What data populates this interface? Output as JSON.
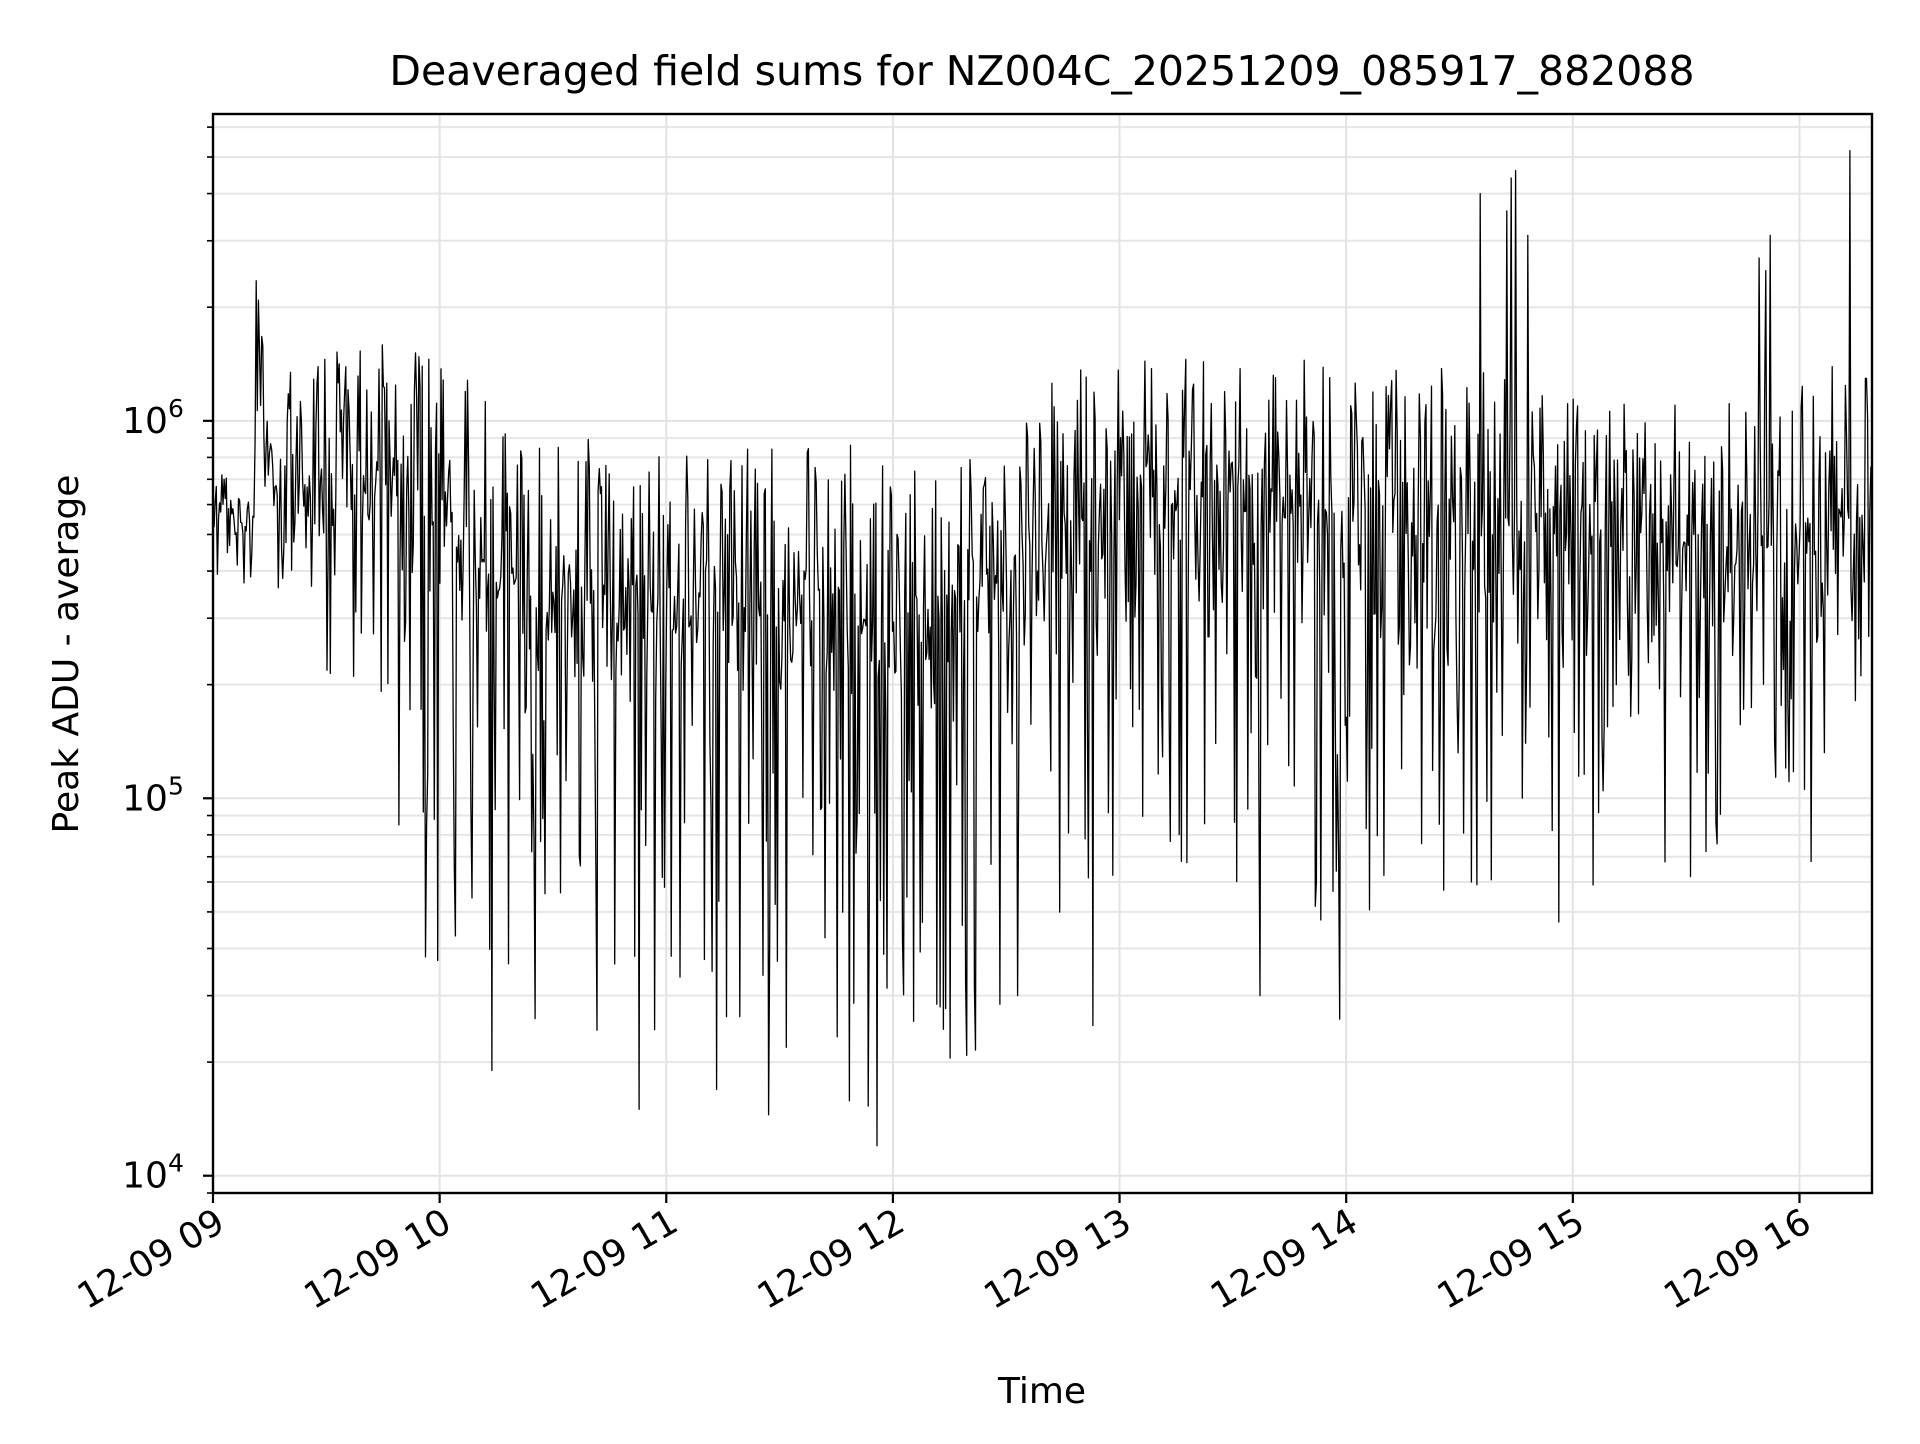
{
  "chart_data": {
    "type": "line",
    "title": "Deaveraged field sums for NZ004C_20251209_085917_882088",
    "xlabel": "Time",
    "ylabel": "Peak ADU - average",
    "y_scale": "log",
    "ylim": [
      9000,
      6500000
    ],
    "y_ticks": [
      {
        "value": 10000,
        "base": "10",
        "exp": "4"
      },
      {
        "value": 100000,
        "base": "10",
        "exp": "5"
      },
      {
        "value": 1000000,
        "base": "10",
        "exp": "6"
      }
    ],
    "xlim_hours": [
      9.0,
      16.32
    ],
    "x_ticks": [
      {
        "hour": 9,
        "label": "12-09 09"
      },
      {
        "hour": 10,
        "label": "12-09 10"
      },
      {
        "hour": 11,
        "label": "12-09 11"
      },
      {
        "hour": 12,
        "label": "12-09 12"
      },
      {
        "hour": 13,
        "label": "12-09 13"
      },
      {
        "hour": 14,
        "label": "12-09 14"
      },
      {
        "hour": 15,
        "label": "12-09 15"
      },
      {
        "hour": 16,
        "label": "12-09 16"
      }
    ],
    "grid": true,
    "series": [
      {
        "name": "field sums",
        "color": "#000000",
        "x_start_hour": 9.0,
        "x_end_hour": 16.32,
        "samples": 1500,
        "envelope": [
          {
            "hour": 9.0,
            "base": 550000,
            "min": 380000,
            "max": 750000
          },
          {
            "hour": 9.18,
            "base": 480000,
            "min": 400000,
            "max": 620000
          },
          {
            "hour": 9.2,
            "base": 1000000,
            "min": 800000,
            "max": 2300000
          },
          {
            "hour": 9.3,
            "base": 600000,
            "min": 280000,
            "max": 1300000
          },
          {
            "hour": 9.5,
            "base": 700000,
            "min": 200000,
            "max": 1600000
          },
          {
            "hour": 9.75,
            "base": 750000,
            "min": 150000,
            "max": 1800000
          },
          {
            "hour": 10.0,
            "base": 450000,
            "min": 30000,
            "max": 1400000
          },
          {
            "hour": 10.5,
            "base": 300000,
            "min": 25000,
            "max": 1000000
          },
          {
            "hour": 11.0,
            "base": 250000,
            "min": 17000,
            "max": 850000
          },
          {
            "hour": 11.5,
            "base": 280000,
            "min": 15000,
            "max": 900000
          },
          {
            "hour": 12.0,
            "base": 250000,
            "min": 12000,
            "max": 850000
          },
          {
            "hour": 12.4,
            "base": 280000,
            "min": 20000,
            "max": 900000
          },
          {
            "hour": 12.7,
            "base": 500000,
            "min": 35000,
            "max": 1300000
          },
          {
            "hour": 13.0,
            "base": 600000,
            "min": 45000,
            "max": 1500000
          },
          {
            "hour": 13.5,
            "base": 550000,
            "min": 40000,
            "max": 1500000
          },
          {
            "hour": 14.0,
            "base": 500000,
            "min": 30000,
            "max": 1450000
          },
          {
            "hour": 14.5,
            "base": 500000,
            "min": 60000,
            "max": 1400000
          },
          {
            "hour": 15.0,
            "base": 450000,
            "min": 50000,
            "max": 1200000
          },
          {
            "hour": 15.5,
            "base": 400000,
            "min": 65000,
            "max": 1100000
          },
          {
            "hour": 16.0,
            "base": 420000,
            "min": 70000,
            "max": 1300000
          },
          {
            "hour": 16.32,
            "base": 500000,
            "min": 200000,
            "max": 1600000
          }
        ],
        "spikes": [
          {
            "hour": 9.19,
            "value": 2350000
          },
          {
            "hour": 14.59,
            "value": 4000000
          },
          {
            "hour": 14.71,
            "value": 3600000
          },
          {
            "hour": 14.73,
            "value": 4400000
          },
          {
            "hour": 14.75,
            "value": 4600000
          },
          {
            "hour": 14.8,
            "value": 3100000
          },
          {
            "hour": 15.82,
            "value": 2700000
          },
          {
            "hour": 15.85,
            "value": 2500000
          },
          {
            "hour": 15.87,
            "value": 3100000
          },
          {
            "hour": 16.22,
            "value": 5200000
          },
          {
            "hour": 9.82,
            "value": 85000
          },
          {
            "hour": 9.94,
            "value": 38000
          },
          {
            "hour": 10.23,
            "value": 19000
          },
          {
            "hour": 10.88,
            "value": 15000
          },
          {
            "hour": 11.45,
            "value": 14500
          },
          {
            "hour": 11.93,
            "value": 12000
          },
          {
            "hour": 12.25,
            "value": 20500
          },
          {
            "hour": 12.55,
            "value": 30000
          },
          {
            "hour": 12.88,
            "value": 25000
          },
          {
            "hour": 13.62,
            "value": 30000
          },
          {
            "hour": 13.97,
            "value": 26000
          },
          {
            "hour": 14.55,
            "value": 60000
          },
          {
            "hour": 14.94,
            "value": 47000
          },
          {
            "hour": 15.52,
            "value": 62000
          },
          {
            "hour": 16.05,
            "value": 68000
          }
        ]
      }
    ]
  }
}
